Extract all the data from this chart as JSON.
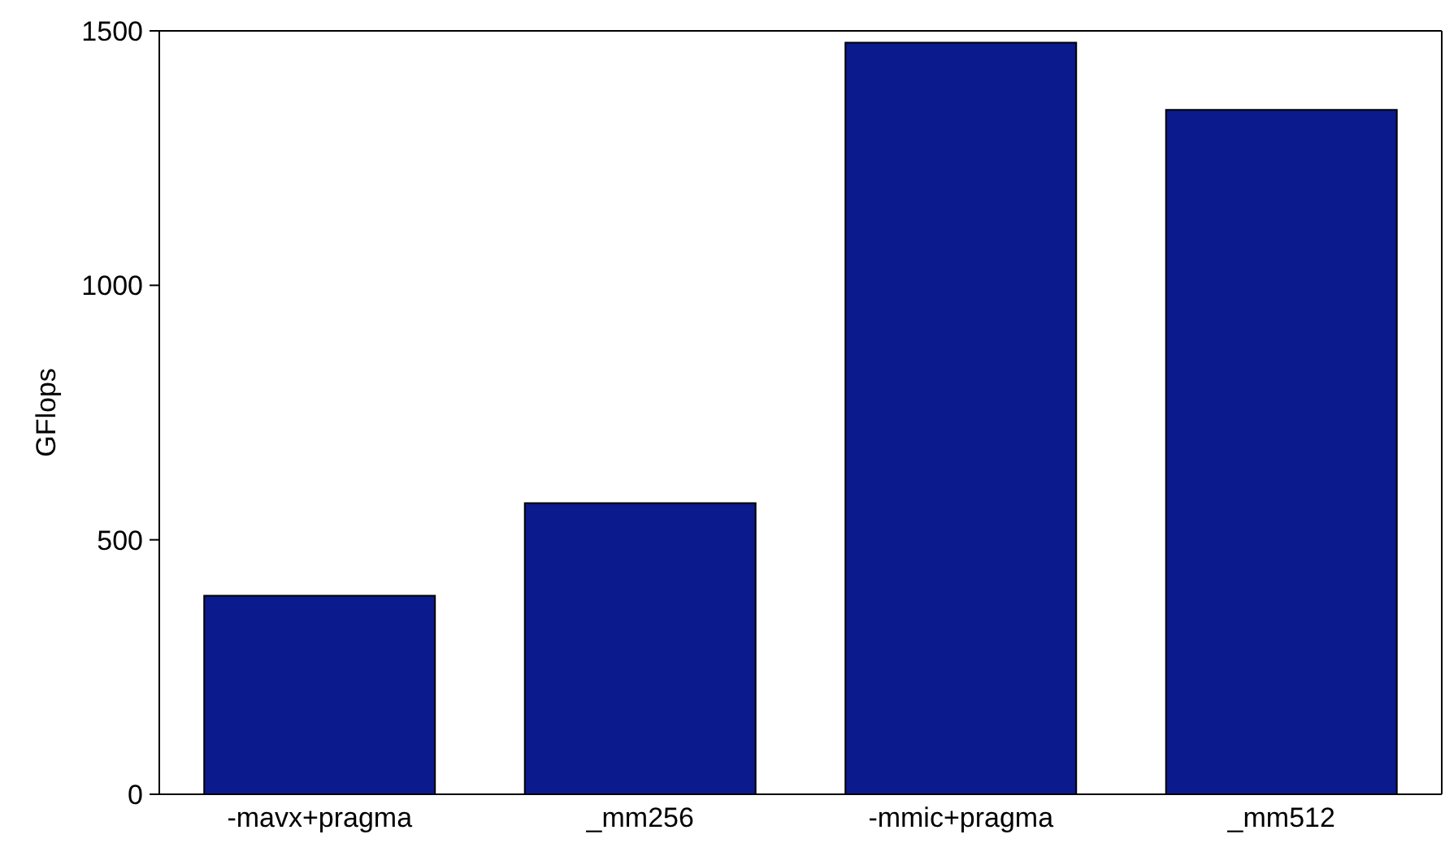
{
  "chart_data": {
    "type": "bar",
    "ylabel": "GFlops",
    "categories": [
      "-mavx+pragma",
      "_mm256",
      "-mmic+pragma",
      "_mm512"
    ],
    "values": [
      390,
      572,
      1477,
      1345
    ],
    "color": "#0b1a8c",
    "ylim": [
      0,
      1500
    ],
    "yticks": [
      0,
      500,
      1000,
      1500
    ],
    "grid": false,
    "legend": false
  }
}
